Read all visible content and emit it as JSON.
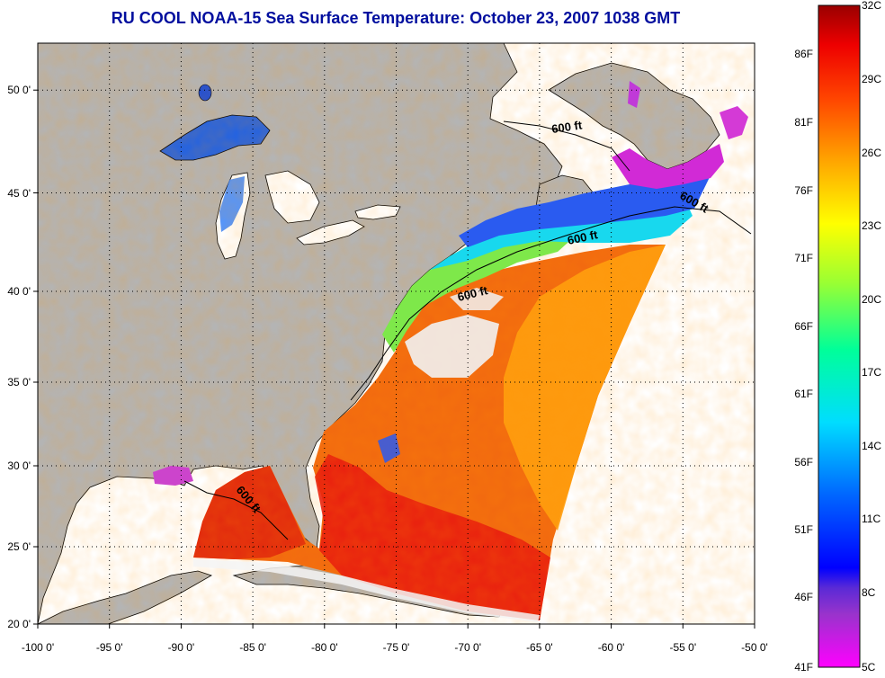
{
  "title": "RU COOL  NOAA-15  Sea Surface Temperature:  October 23, 2007 1038 GMT",
  "map": {
    "lon_ticks": [
      "-100 0'",
      "-95 0'",
      "-90 0'",
      "-85 0'",
      "-80 0'",
      "-75 0'",
      "-70 0'",
      "-65 0'",
      "-60 0'",
      "-55 0'",
      "-50 0'"
    ],
    "lat_ticks": [
      "50 0'",
      "45 0'",
      "40 0'",
      "35 0'",
      "30 0'",
      "25 0'",
      "20 0'"
    ],
    "isobath_labels": [
      "600 ft",
      "600 ft",
      "600 ft",
      "600 ft",
      "600 ft"
    ],
    "colors": {
      "land": "#b4b4b4",
      "water_no_data": "#ffffff",
      "lakes": "#ffffff",
      "grid": "#000000"
    }
  },
  "colorbar": {
    "celsius_labels": [
      "32C",
      "29C",
      "26C",
      "23C",
      "20C",
      "17C",
      "14C",
      "11C",
      "8C",
      "5C"
    ],
    "fahrenheit_labels": [
      "86F",
      "81F",
      "76F",
      "71F",
      "66F",
      "61F",
      "56F",
      "51F",
      "46F",
      "41F"
    ],
    "celsius_min": 5,
    "celsius_max": 32
  }
}
